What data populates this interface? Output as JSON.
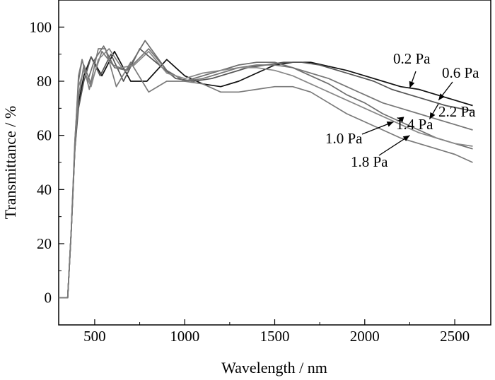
{
  "chart_data": {
    "type": "line",
    "xlabel": "Wavelength / nm",
    "ylabel": "Transmittance / %",
    "xlim": [
      300,
      2700
    ],
    "ylim": [
      -10,
      110
    ],
    "xticks": [
      500,
      1000,
      1500,
      2000,
      2500
    ],
    "yticks": [
      0,
      20,
      40,
      60,
      80,
      100
    ],
    "grid": false,
    "legend": "none",
    "series": [
      {
        "name": "0.2 Pa",
        "color": "#111111",
        "x": [
          300,
          350,
          370,
          390,
          410,
          440,
          480,
          540,
          610,
          700,
          790,
          900,
          1000,
          1100,
          1200,
          1300,
          1400,
          1500,
          1600,
          1700,
          1800,
          1900,
          2000,
          2100,
          2200,
          2300,
          2400,
          2500,
          2600
        ],
        "y": [
          0,
          0,
          25,
          55,
          72,
          82,
          89,
          82,
          91,
          80,
          80,
          88,
          82,
          79,
          78,
          80,
          83,
          86,
          87,
          87,
          85.5,
          84,
          82,
          80,
          78,
          77,
          75,
          73,
          71
        ]
      },
      {
        "name": "0.6 Pa",
        "color": "#555555",
        "x": [
          300,
          350,
          370,
          390,
          410,
          440,
          480,
          530,
          590,
          660,
          750,
          840,
          950,
          1050,
          1150,
          1250,
          1350,
          1450,
          1550,
          1650,
          1750,
          1850,
          1950,
          2050,
          2150,
          2250,
          2350,
          2450,
          2600
        ],
        "y": [
          0,
          0,
          25,
          55,
          70,
          80,
          89,
          82,
          90,
          80,
          92,
          87,
          81,
          80,
          81,
          83,
          85,
          86,
          87,
          87,
          86,
          84,
          82,
          80,
          77,
          75,
          73,
          71,
          69
        ]
      },
      {
        "name": "2.2 Pa",
        "color": "#777777",
        "x": [
          300,
          350,
          370,
          390,
          410,
          440,
          480,
          540,
          600,
          680,
          800,
          900,
          1000,
          1100,
          1200,
          1300,
          1400,
          1500,
          1600,
          1700,
          1800,
          1900,
          2000,
          2100,
          2200,
          2300,
          2400,
          2500,
          2600
        ],
        "y": [
          0,
          0,
          25,
          56,
          74,
          86,
          79,
          91,
          86,
          84,
          92,
          84,
          80,
          81,
          83,
          85,
          86,
          86,
          85,
          83,
          81,
          78,
          75,
          72,
          70,
          68,
          66,
          64,
          62
        ]
      },
      {
        "name": "1.4 Pa",
        "color": "#6e6e6e",
        "x": [
          300,
          350,
          370,
          390,
          410,
          430,
          460,
          500,
          550,
          610,
          680,
          780,
          900,
          1000,
          1100,
          1200,
          1300,
          1400,
          1500,
          1600,
          1700,
          1800,
          1900,
          2000,
          2100,
          2200,
          2300,
          2400,
          2500,
          2600
        ],
        "y": [
          0,
          0,
          25,
          58,
          80,
          88,
          80,
          88,
          93,
          85,
          84,
          95,
          84,
          80,
          82,
          84,
          86,
          87,
          87,
          85,
          82,
          79,
          75,
          72,
          68,
          65,
          62,
          59,
          57,
          55
        ]
      },
      {
        "name": "1.0 Pa",
        "color": "#888888",
        "x": [
          300,
          350,
          370,
          390,
          410,
          440,
          480,
          520,
          580,
          650,
          720,
          800,
          900,
          1000,
          1100,
          1200,
          1300,
          1400,
          1500,
          1600,
          1700,
          1800,
          1900,
          2000,
          2100,
          2200,
          2300,
          2400,
          2500,
          2600
        ],
        "y": [
          0,
          0,
          25,
          58,
          78,
          84,
          78,
          88,
          92,
          85,
          86,
          91,
          83,
          81,
          83,
          84,
          85,
          85,
          84,
          82,
          79,
          76,
          73,
          70,
          67,
          64,
          61,
          59,
          57,
          56
        ]
      },
      {
        "name": "1.8 Pa",
        "color": "#7a7a7a",
        "x": [
          300,
          350,
          370,
          390,
          410,
          430,
          470,
          520,
          560,
          620,
          700,
          800,
          900,
          1000,
          1100,
          1200,
          1300,
          1400,
          1500,
          1600,
          1700,
          1800,
          1900,
          2000,
          2100,
          2200,
          2300,
          2400,
          2500,
          2600
        ],
        "y": [
          0,
          0,
          25,
          56,
          82,
          88,
          77,
          92,
          92,
          78,
          87,
          76,
          80,
          80,
          79,
          76,
          76,
          77,
          78,
          78,
          76,
          72,
          68,
          65,
          62,
          59,
          57,
          55,
          53,
          50
        ]
      }
    ],
    "annotations": [
      {
        "text": "0.2 Pa",
        "arrow_to": [
          2250,
          77.5
        ]
      },
      {
        "text": "0.6 Pa",
        "arrow_to": [
          2410,
          73
        ]
      },
      {
        "text": "2.2 Pa",
        "arrow_to": [
          2360,
          66
        ]
      },
      {
        "text": "1.4 Pa",
        "arrow_to": [
          2180,
          66.5
        ]
      },
      {
        "text": "1.0 Pa",
        "arrow_to": [
          2160,
          65
        ]
      },
      {
        "text": "1.8 Pa",
        "arrow_to": [
          2250,
          60
        ]
      }
    ]
  }
}
